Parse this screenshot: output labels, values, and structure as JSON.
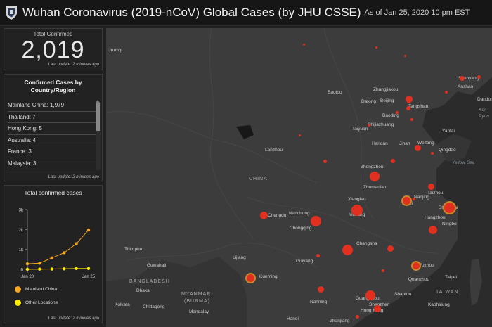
{
  "header": {
    "title": "Wuhan Coronavirus (2019-nCoV) Global Cases (by JHU CSSE)",
    "as_of": "As of Jan 25, 2020 10 pm EST"
  },
  "total": {
    "label": "Total Confirmed",
    "value": "2,019",
    "last_update": "Last update: 2 minutes ago"
  },
  "cases_list": {
    "title_line1": "Confirmed Cases by",
    "title_line2": "Country/Region",
    "items": [
      "Mainland China: 1,979",
      "Thailand: 7",
      "Hong Kong: 5",
      "Australia: 4",
      "France: 3",
      "Malaysia: 3"
    ],
    "last_update": "Last update: 2 minutes ago"
  },
  "chart_panel": {
    "title": "Total confirmed cases",
    "last_update": "Last update: 2 minutes ago"
  },
  "chart_data": {
    "type": "line",
    "title": "Total confirmed cases",
    "x": [
      "Jan 20",
      "Jan 21",
      "Jan 22",
      "Jan 23",
      "Jan 24",
      "Jan 25"
    ],
    "x_tick_labels": [
      "Jan 20",
      "Jan 25"
    ],
    "y_tick_labels": [
      "0",
      "1k",
      "2k",
      "3k"
    ],
    "ylim": [
      0,
      3000
    ],
    "series": [
      {
        "name": "Mainland China",
        "color": "#f5a623",
        "values": [
          278,
          309,
          571,
          830,
          1287,
          1979
        ]
      },
      {
        "name": "Other Locations",
        "color": "#ffee00",
        "values": [
          4,
          11,
          17,
          25,
          41,
          40
        ]
      }
    ],
    "legend_position": "bottom"
  },
  "map": {
    "country_labels": [
      {
        "id": "china",
        "text": "CHINA"
      },
      {
        "id": "myanmar1",
        "text": "MYANMAR"
      },
      {
        "id": "myanmar2",
        "text": "(BURMA)"
      },
      {
        "id": "bangladesh",
        "text": "BANGLADESH"
      },
      {
        "id": "taiwan",
        "text": "TAIWAN"
      }
    ],
    "city_labels": [
      {
        "id": "urumqi",
        "text": "Urumqi"
      },
      {
        "id": "baotou",
        "text": "Baotou"
      },
      {
        "id": "zhangjiakou",
        "text": "Zhangjiakou"
      },
      {
        "id": "datong",
        "text": "Datong"
      },
      {
        "id": "beijing",
        "text": "Beijing"
      },
      {
        "id": "tangshan",
        "text": "Tangshan"
      },
      {
        "id": "shenyang",
        "text": "Shenyang"
      },
      {
        "id": "anshan",
        "text": "Anshan"
      },
      {
        "id": "dandong",
        "text": "Dandong"
      },
      {
        "id": "baoding",
        "text": "Baoding"
      },
      {
        "id": "taiyuan",
        "text": "Taiyuan"
      },
      {
        "id": "shijiazhuang",
        "text": "Shijiazhuang"
      },
      {
        "id": "handan",
        "text": "Handan"
      },
      {
        "id": "jinan",
        "text": "Jinan"
      },
      {
        "id": "weifang",
        "text": "Weifang"
      },
      {
        "id": "qingdao",
        "text": "Qingdao"
      },
      {
        "id": "yantai",
        "text": "Yantai"
      },
      {
        "id": "lanzhou",
        "text": "Lanzhou"
      },
      {
        "id": "zhengzhou",
        "text": "Zhengzhou"
      },
      {
        "id": "zhumadian",
        "text": "Zhumadian"
      },
      {
        "id": "taizhou",
        "text": "Taizhou"
      },
      {
        "id": "xiangfan",
        "text": "Xiangfan"
      },
      {
        "id": "nanjing",
        "text": "Nanjing"
      },
      {
        "id": "hefei",
        "text": "Hefei"
      },
      {
        "id": "shanghai",
        "text": "Shanghai"
      },
      {
        "id": "chengdu",
        "text": "Chengdu"
      },
      {
        "id": "nanchong",
        "text": "Nanchong"
      },
      {
        "id": "yichang",
        "text": "Yichang"
      },
      {
        "id": "chongqing",
        "text": "Chongqing"
      },
      {
        "id": "hangzhou",
        "text": "Hangzhou"
      },
      {
        "id": "ningbo",
        "text": "Ningbo"
      },
      {
        "id": "changsha",
        "text": "Changsha"
      },
      {
        "id": "thimphu",
        "text": "Thimphu"
      },
      {
        "id": "guwahati",
        "text": "Guwahati"
      },
      {
        "id": "lijiang",
        "text": "Lijiang"
      },
      {
        "id": "guiyang",
        "text": "Guiyang"
      },
      {
        "id": "kunming",
        "text": "Kunming"
      },
      {
        "id": "dhaka",
        "text": "Dhaka"
      },
      {
        "id": "fuzhou",
        "text": "Fuzhou"
      },
      {
        "id": "quanzhou",
        "text": "Quanzhou"
      },
      {
        "id": "taipei",
        "text": "Taipei"
      },
      {
        "id": "shantou",
        "text": "Shantou"
      },
      {
        "id": "kolkata",
        "text": "Kolkata"
      },
      {
        "id": "chittagong",
        "text": "Chittagong"
      },
      {
        "id": "mandalay",
        "text": "Mandalay"
      },
      {
        "id": "nanning",
        "text": "Nanning"
      },
      {
        "id": "guangzhou",
        "text": "Guangzhou"
      },
      {
        "id": "shenzhen",
        "text": "Shenzhen"
      },
      {
        "id": "hongkong",
        "text": "Hong Kong"
      },
      {
        "id": "kaohsiung",
        "text": "Kaohsiung"
      },
      {
        "id": "hanoi",
        "text": "Hanoi"
      },
      {
        "id": "zhanjiang",
        "text": "Zhanjiang"
      }
    ],
    "sea_labels": [
      {
        "id": "yellowsea",
        "text": "Yellow Sea"
      },
      {
        "id": "korea",
        "text": "Kor"
      },
      {
        "id": "pyon",
        "text": "Pyon"
      }
    ],
    "marker_color": "#e23020",
    "marker_ring_color": "#c9882a"
  }
}
